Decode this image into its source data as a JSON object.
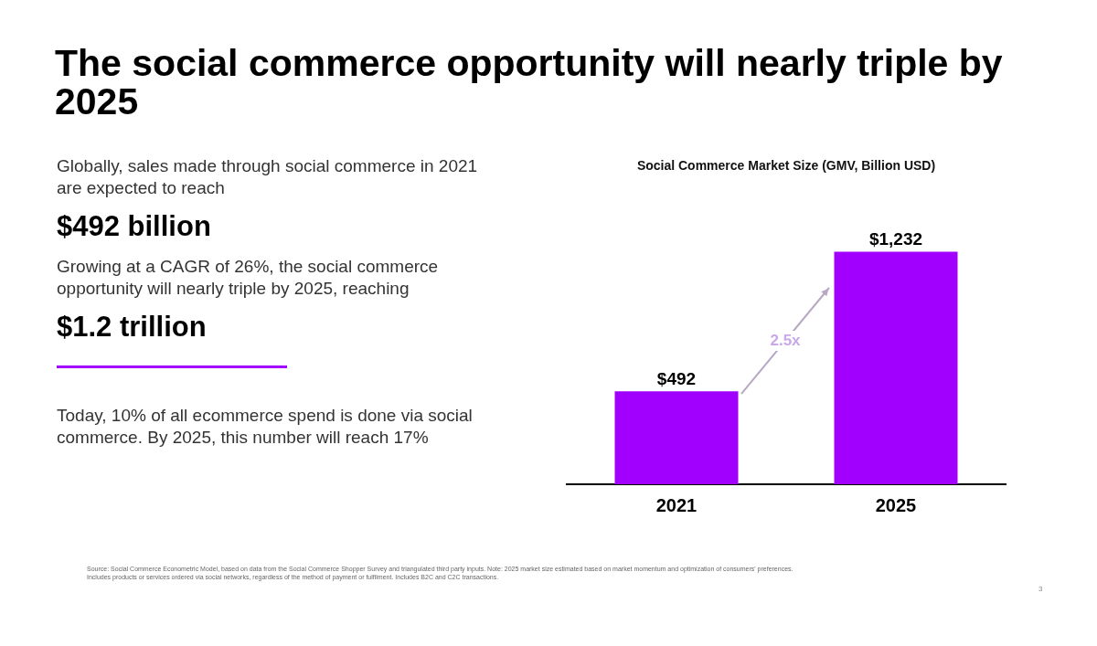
{
  "chart_data": {
    "type": "bar",
    "title": "The social commerce opportunity will nearly triple by 2025",
    "subtitle": "Social Commerce Market Size (GMV, Billion USD)",
    "categories": [
      "2021",
      "2025"
    ],
    "values": [
      492,
      1232
    ],
    "value_labels": [
      "$492",
      "$1,232"
    ],
    "color": "#a100ff",
    "grid": false,
    "legend": false,
    "annotations": [
      "Globally, sales made through social commerce in 2021 are expected to reach",
      "$492 billion",
      "Growing at a CAGR of 26%, the social commerce opportunity will nearly triple by 2025, reaching",
      "$1.2 trillion",
      "Today, 10% of all ecommerce spend is done via social commerce. By 2025, this number will reach 17%",
      "2.5x",
      "Source: Social Commerce Econometric Model, based on data from the Social Commerce Shopper Survey and triangulated third party inputs. Note: 2025 market size estimated based on market momentum and optimization of consumers' preferences. Includes products or services ordered via social networks, regardless of the method of payment or fulfilment. Includes B2C and C2C transactions.",
      "3"
    ]
  }
}
